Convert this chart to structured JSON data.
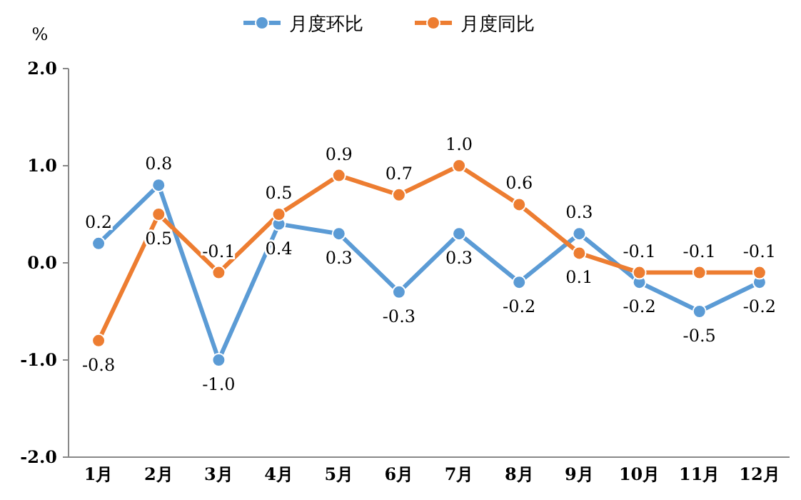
{
  "chart_data": {
    "type": "line",
    "ylabel": "%",
    "categories": [
      "1月",
      "2月",
      "3月",
      "4月",
      "5月",
      "6月",
      "7月",
      "8月",
      "9月",
      "10月",
      "11月",
      "12月"
    ],
    "series": [
      {
        "name": "月度环比",
        "color": "#5b9bd5",
        "values": [
          0.2,
          0.8,
          -1.0,
          0.4,
          0.3,
          -0.3,
          0.3,
          -0.2,
          0.3,
          -0.2,
          -0.5,
          -0.2
        ],
        "value_labels": [
          "0.2",
          "0.8",
          "-1.0",
          "0.4",
          "0.3",
          "-0.3",
          "0.3",
          "-0.2",
          "0.3",
          "-0.2",
          "-0.5",
          "-0.2"
        ]
      },
      {
        "name": "月度同比",
        "color": "#ed7d31",
        "values": [
          -0.8,
          0.5,
          -0.1,
          0.5,
          0.9,
          0.7,
          1.0,
          0.6,
          0.1,
          -0.1,
          -0.1,
          -0.1
        ],
        "value_labels": [
          "-0.8",
          "0.5",
          "-0.1",
          "0.5",
          "0.9",
          "0.7",
          "1.0",
          "0.6",
          "0.1",
          "-0.1",
          "-0.1",
          "-0.1"
        ]
      }
    ],
    "ylim": [
      -2,
      2
    ],
    "yticks": [
      {
        "value": -2,
        "label": "-2.0"
      },
      {
        "value": -1,
        "label": "-1.0"
      },
      {
        "value": 0,
        "label": "0.0"
      },
      {
        "value": 1,
        "label": "1.0"
      },
      {
        "value": 2,
        "label": "2.0"
      }
    ],
    "legend": "top",
    "marker": "circle",
    "line_style": "solid",
    "grid": false
  }
}
